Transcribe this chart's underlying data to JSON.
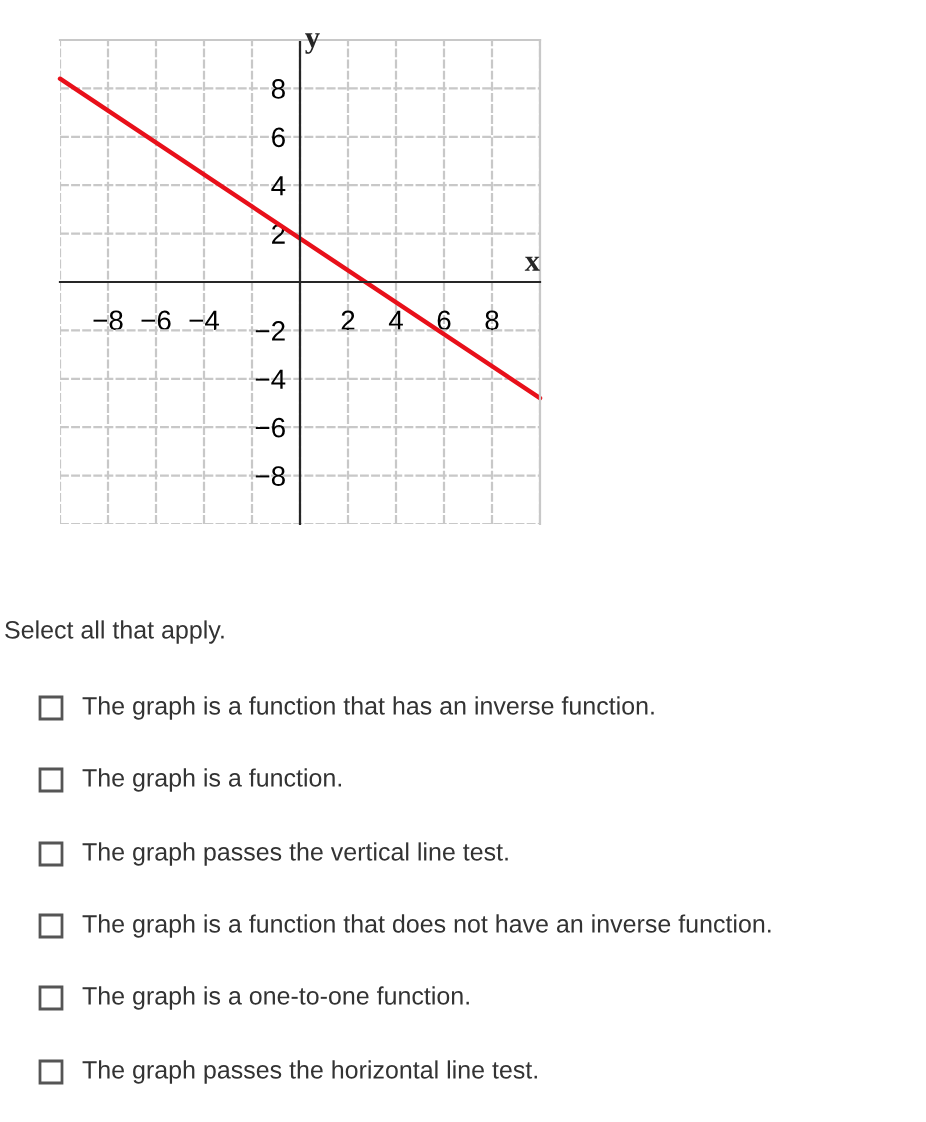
{
  "chart_data": {
    "type": "line",
    "xlabel": "x",
    "ylabel": "y",
    "series": [
      {
        "color": "#e8101a",
        "x": [
          -10,
          10
        ],
        "values": [
          8.4,
          -4.8
        ]
      }
    ],
    "xlim": [
      -10,
      10
    ],
    "ylim": [
      -10,
      10
    ],
    "xticks": [
      {
        "value": -10,
        "label": null
      },
      {
        "value": -8,
        "label": "−8"
      },
      {
        "value": -6,
        "label": "−6"
      },
      {
        "value": -4,
        "label": "−4"
      },
      {
        "value": -2,
        "label": null
      },
      {
        "value": 0,
        "label": null
      },
      2,
      4,
      6,
      8,
      {
        "value": 10,
        "label": null
      }
    ],
    "yticks": [
      {
        "value": -10,
        "label": null
      },
      {
        "value": -8,
        "label": "−8"
      },
      {
        "value": -6,
        "label": "−6"
      },
      {
        "value": -4,
        "label": "−4"
      },
      {
        "value": -2,
        "label": "−2"
      },
      {
        "value": 0,
        "label": null
      },
      2,
      4,
      6,
      8,
      {
        "value": 10,
        "label": null
      }
    ],
    "grid": true,
    "marker": "none",
    "line_style": "solid",
    "annotations": [
      "Select all that apply.",
      "The graph is a function that has an inverse function.",
      "The graph is a function.",
      "The graph passes the vertical line test.",
      "The graph is a function that does not have an inverse function.",
      "The graph is a one-to-one function.",
      "The graph passes the horizontal line test."
    ]
  }
}
